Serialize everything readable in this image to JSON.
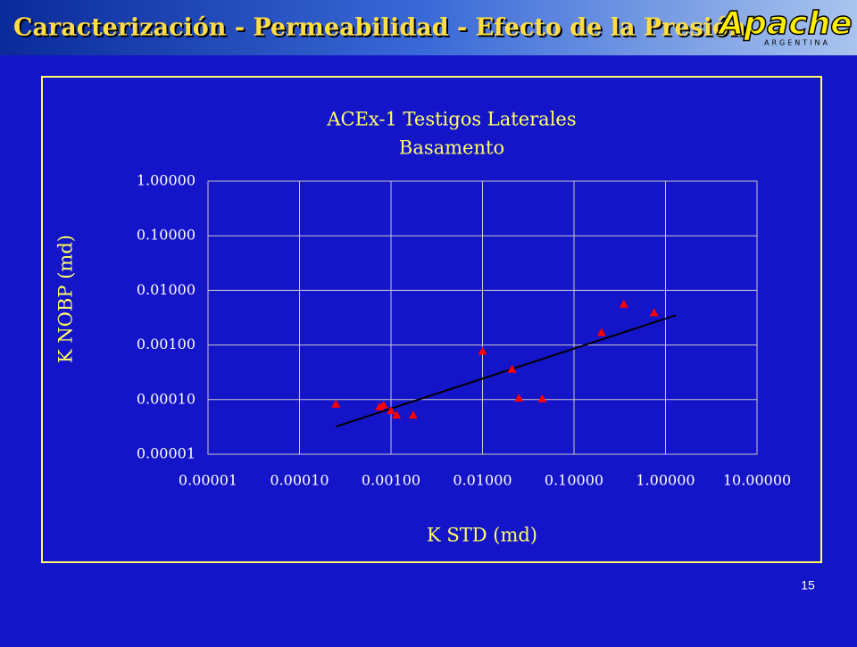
{
  "header": {
    "title": "Caracterización - Permeabilidad - Efecto de la Presión",
    "logo": "Apache",
    "logo_sub": "ARGENTINA"
  },
  "chart_data": {
    "type": "scatter",
    "title": "ACEx-1 Testigos Laterales",
    "subtitle": "Basamento",
    "x_label": "K STD (md)",
    "y_label": "K NOBP (md)",
    "x": [
      0.00025,
      0.00075,
      0.00083,
      0.001,
      0.00115,
      0.00175,
      0.01,
      0.021,
      0.025,
      0.045,
      0.2,
      0.35,
      0.75
    ],
    "values": [
      8.3e-05,
      7.4e-05,
      8e-05,
      6.3e-05,
      5.2e-05,
      5.2e-05,
      0.00077,
      0.00036,
      0.000107,
      0.000104,
      0.0017,
      0.0056,
      0.0039
    ],
    "color": "#ff0000",
    "trendline": {
      "x": [
        0.00025,
        1.29
      ],
      "values": [
        3.2e-05,
        0.0035
      ],
      "color": "#000000"
    },
    "xscale": "log",
    "yscale": "log",
    "grid": true,
    "xlim": [
      1e-05,
      10
    ],
    "ylim": [
      1e-05,
      1
    ],
    "xticks": [
      {
        "value": 1e-05,
        "label": "0.00001"
      },
      {
        "value": 0.0001,
        "label": "0.00010"
      },
      {
        "value": 0.001,
        "label": "0.00100"
      },
      {
        "value": 0.01,
        "label": "0.01000"
      },
      {
        "value": 0.1,
        "label": "0.10000"
      },
      {
        "value": 1,
        "label": "1.00000"
      },
      {
        "value": 10,
        "label": "10.00000"
      }
    ],
    "yticks": [
      {
        "value": 1e-05,
        "label": "0.00001"
      },
      {
        "value": 0.0001,
        "label": "0.00010"
      },
      {
        "value": 0.001,
        "label": "0.00100"
      },
      {
        "value": 0.01,
        "label": "0.01000"
      },
      {
        "value": 0.1,
        "label": "0.10000"
      },
      {
        "value": 1,
        "label": "1.00000"
      }
    ]
  },
  "footer": {
    "page_number": "15"
  }
}
